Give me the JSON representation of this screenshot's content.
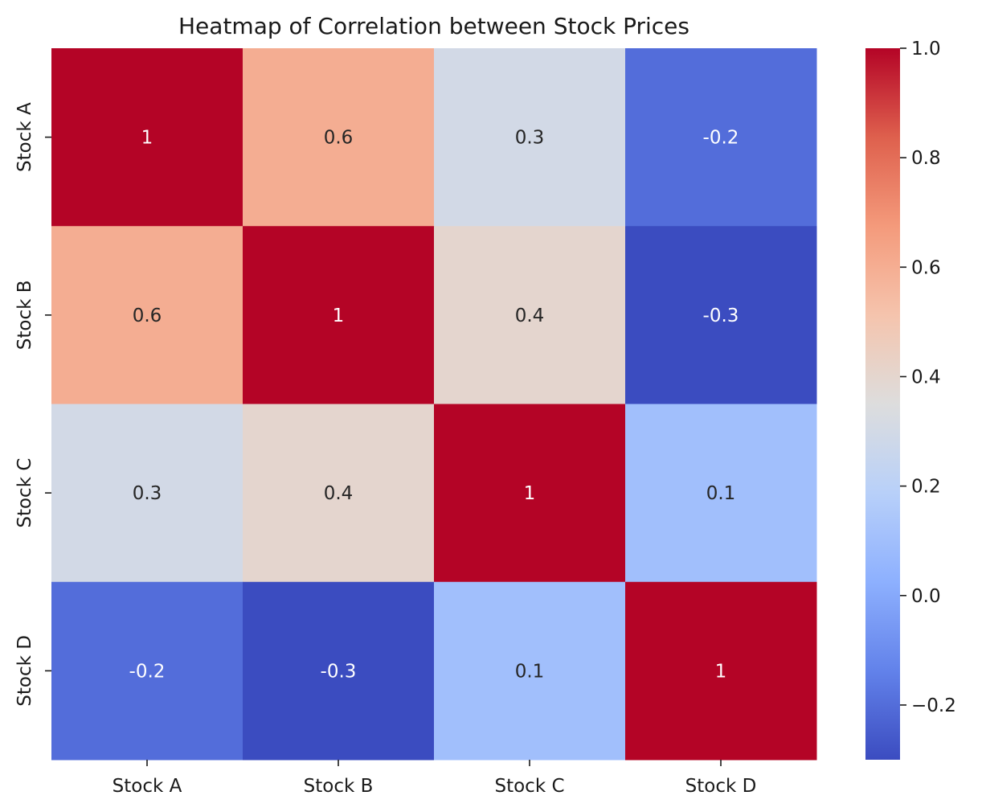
{
  "chart_data": {
    "type": "heatmap",
    "title": "Heatmap of Correlation between Stock Prices",
    "x_labels": [
      "Stock A",
      "Stock B",
      "Stock C",
      "Stock D"
    ],
    "y_labels": [
      "Stock A",
      "Stock B",
      "Stock C",
      "Stock D"
    ],
    "values": [
      [
        1,
        0.6,
        0.3,
        -0.2
      ],
      [
        0.6,
        1,
        0.4,
        -0.3
      ],
      [
        0.3,
        0.4,
        1,
        0.1
      ],
      [
        -0.2,
        -0.3,
        0.1,
        1
      ]
    ],
    "cell_labels": [
      [
        "1",
        "0.6",
        "0.3",
        "-0.2"
      ],
      [
        "0.6",
        "1",
        "0.4",
        "-0.3"
      ],
      [
        "0.3",
        "0.4",
        "1",
        "0.1"
      ],
      [
        "-0.2",
        "-0.3",
        "0.1",
        "1"
      ]
    ],
    "colormap": "coolwarm",
    "vmin": -0.3,
    "vmax": 1.0,
    "colorbar": {
      "ticks": [
        -0.2,
        0.0,
        0.2,
        0.4,
        0.6,
        0.8,
        1.0
      ],
      "tick_labels": [
        "−0.2",
        "0.0",
        "0.2",
        "0.4",
        "0.6",
        "0.8",
        "1.0"
      ]
    },
    "annotated": true,
    "grid": false
  }
}
